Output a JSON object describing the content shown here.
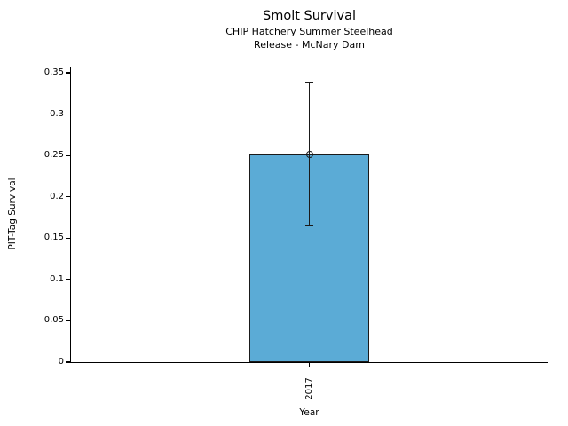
{
  "chart_data": {
    "type": "bar",
    "title": "Smolt Survival",
    "subtitle_line1": "CHIP Hatchery Summer Steelhead",
    "subtitle_line2": "Release - McNary Dam",
    "categories": [
      "2017"
    ],
    "values": [
      0.251
    ],
    "error_low": [
      0.165
    ],
    "error_high": [
      0.338
    ],
    "xlabel": "Year",
    "ylabel": "PIT-Tag Survival",
    "ylim": [
      0,
      0.35
    ],
    "yticks": [
      "0",
      "0.05",
      "0.1",
      "0.15",
      "0.2",
      "0.25",
      "0.3",
      "0.35"
    ],
    "bar_color": "#5BABD6",
    "bar_edge_color": "#1a1a1a",
    "error_color": "#1a1a1a",
    "marker": "open-circle",
    "grid": false,
    "legend": false
  }
}
